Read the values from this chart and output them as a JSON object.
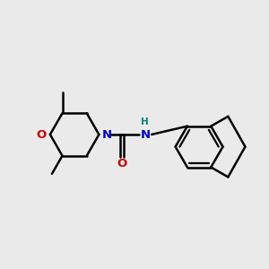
{
  "bg_color": "#eaeaea",
  "bond_color": "#000000",
  "N_color": "#0000cc",
  "O_color": "#cc0000",
  "NH_color": "#0000cc",
  "H_color": "#008080",
  "lw": 1.8,
  "figsize": [
    3.0,
    3.0
  ],
  "dpi": 100,
  "xlim": [
    0,
    12
  ],
  "ylim": [
    0,
    12
  ]
}
